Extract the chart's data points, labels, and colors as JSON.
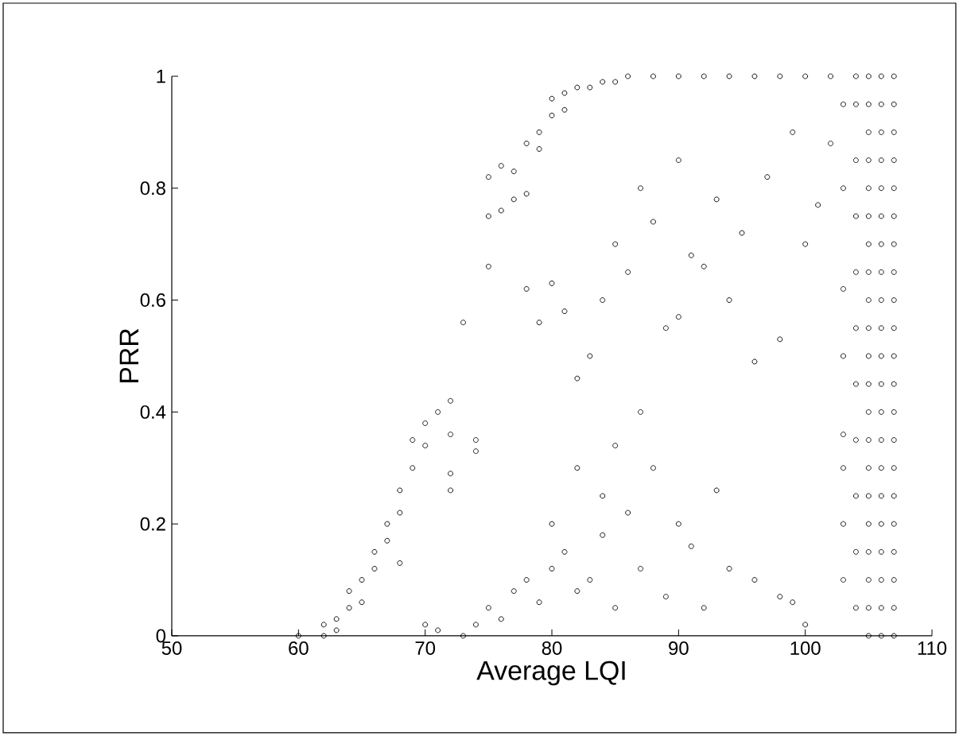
{
  "chart_data": {
    "type": "scatter",
    "xlabel": "Average LQI",
    "ylabel": "PRR",
    "xlim": [
      50,
      110
    ],
    "ylim": [
      0,
      1
    ],
    "xticks": [
      50,
      60,
      70,
      80,
      90,
      100,
      110
    ],
    "yticks": [
      0,
      0.2,
      0.4,
      0.6,
      0.8,
      1
    ],
    "marker": "circle",
    "grid": false,
    "series": [
      {
        "color": "#000000",
        "x": [
          60,
          62,
          62,
          63,
          63,
          64,
          64,
          65,
          65,
          66,
          66,
          67,
          67,
          68,
          68,
          68,
          69,
          69,
          70,
          70,
          71,
          72,
          72,
          72,
          72,
          73,
          74,
          74,
          75,
          75,
          75,
          76,
          76,
          77,
          77,
          78,
          78,
          79,
          79,
          80,
          80,
          81,
          81,
          82,
          83,
          84,
          85,
          86,
          88,
          90,
          92,
          94,
          96,
          98,
          100,
          102,
          104,
          70,
          71,
          73,
          74,
          75,
          76,
          77,
          78,
          79,
          80,
          80,
          81,
          82,
          82,
          83,
          84,
          84,
          85,
          85,
          86,
          87,
          87,
          88,
          89,
          90,
          91,
          92,
          93,
          94,
          96,
          98,
          99,
          100,
          78,
          79,
          80,
          81,
          82,
          83,
          84,
          85,
          86,
          87,
          88,
          89,
          90,
          90,
          91,
          92,
          93,
          94,
          95,
          96,
          97,
          98,
          99,
          100,
          101,
          102,
          103,
          103,
          103,
          103,
          103,
          103,
          103,
          103,
          104,
          104,
          104,
          104,
          104,
          104,
          104,
          104,
          104,
          104,
          105,
          105,
          105,
          105,
          105,
          105,
          105,
          105,
          105,
          105,
          105,
          105,
          105,
          105,
          105,
          105,
          105,
          105,
          105,
          105,
          105,
          106,
          106,
          106,
          106,
          106,
          106,
          106,
          106,
          106,
          106,
          106,
          106,
          106,
          106,
          106,
          106,
          106,
          106,
          106,
          106,
          106,
          107,
          107,
          107,
          107,
          107,
          107,
          107,
          107,
          107,
          107,
          107,
          107,
          107,
          107,
          107,
          107,
          107,
          107,
          107,
          107,
          107
        ],
        "values": [
          0,
          0,
          0.02,
          0.03,
          0.01,
          0.05,
          0.08,
          0.1,
          0.06,
          0.12,
          0.15,
          0.2,
          0.17,
          0.26,
          0.22,
          0.13,
          0.3,
          0.35,
          0.38,
          0.34,
          0.4,
          0.42,
          0.36,
          0.29,
          0.26,
          0.56,
          0.35,
          0.33,
          0.66,
          0.82,
          0.75,
          0.84,
          0.76,
          0.83,
          0.78,
          0.88,
          0.79,
          0.9,
          0.87,
          0.93,
          0.96,
          0.97,
          0.94,
          0.98,
          0.98,
          0.99,
          0.99,
          1,
          1,
          1,
          1,
          1,
          1,
          1,
          1,
          1,
          1,
          0.02,
          0.01,
          0,
          0.02,
          0.05,
          0.03,
          0.08,
          0.1,
          0.06,
          0.12,
          0.2,
          0.15,
          0.3,
          0.08,
          0.1,
          0.25,
          0.18,
          0.34,
          0.05,
          0.22,
          0.12,
          0.4,
          0.3,
          0.07,
          0.2,
          0.16,
          0.05,
          0.26,
          0.12,
          0.1,
          0.07,
          0.06,
          0.02,
          0.62,
          0.56,
          0.63,
          0.58,
          0.46,
          0.5,
          0.6,
          0.7,
          0.65,
          0.8,
          0.74,
          0.55,
          0.57,
          0.85,
          0.68,
          0.66,
          0.78,
          0.6,
          0.72,
          0.49,
          0.82,
          0.53,
          0.9,
          0.7,
          0.77,
          0.88,
          0.62,
          0.36,
          0.1,
          0.2,
          0.3,
          0.5,
          0.8,
          0.95,
          0.05,
          0.15,
          0.25,
          0.35,
          0.45,
          0.55,
          0.65,
          0.75,
          0.85,
          0.95,
          0,
          0.05,
          0.1,
          0.15,
          0.2,
          0.25,
          0.3,
          0.35,
          0.4,
          0.45,
          0.5,
          0.55,
          0.6,
          0.65,
          0.7,
          0.75,
          0.8,
          0.85,
          0.9,
          0.95,
          1,
          0,
          0.05,
          0.1,
          0.15,
          0.2,
          0.25,
          0.3,
          0.35,
          0.4,
          0.45,
          0.5,
          0.55,
          0.6,
          0.65,
          0.7,
          0.75,
          0.8,
          0.85,
          0.9,
          0.95,
          1,
          0,
          0.05,
          0.1,
          0.15,
          0.2,
          0.25,
          0.3,
          0.35,
          0.4,
          0.45,
          0.5,
          0.55,
          0.6,
          0.65,
          0.7,
          0.75,
          0.8,
          0.85,
          0.9,
          0.95,
          1
        ]
      }
    ]
  }
}
